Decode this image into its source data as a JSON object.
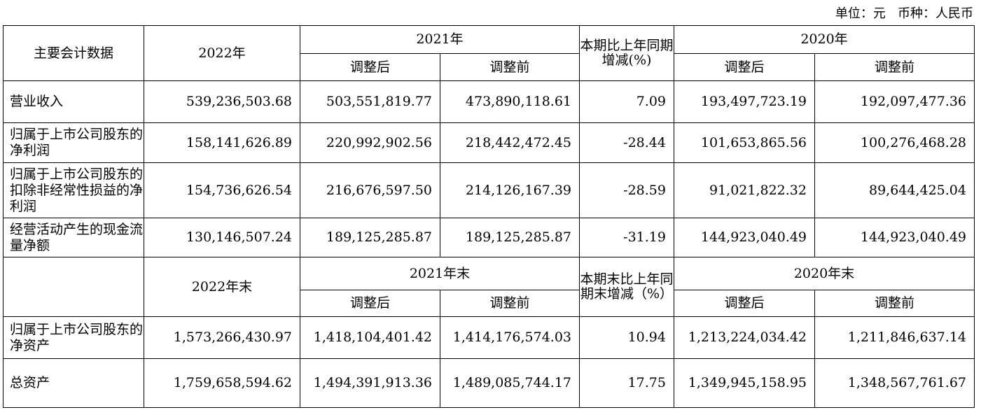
{
  "unit_line": "单位：元   币种：人民币",
  "header_top": {
    "metric": "主要会计数据",
    "y_cur": "2022年",
    "y_prev": "2021年",
    "change": "本期比上年同期增减(%)",
    "y_prev2": "2020年",
    "adj_after": "调整后",
    "adj_before": "调整前"
  },
  "rows_top": [
    {
      "label": "营业收入",
      "v2022": "539,236,503.68",
      "v2021_after": "503,551,819.77",
      "v2021_before": "473,890,118.61",
      "change": "7.09",
      "v2020_after": "193,497,723.19",
      "v2020_before": "192,097,477.36"
    },
    {
      "label": "归属于上市公司股东的净利润",
      "v2022": "158,141,626.89",
      "v2021_after": "220,992,902.56",
      "v2021_before": "218,442,472.45",
      "change": "-28.44",
      "v2020_after": "101,653,865.56",
      "v2020_before": "100,276,468.28"
    },
    {
      "label": "归属于上市公司股东的扣除非经常性损益的净利润",
      "v2022": "154,736,626.54",
      "v2021_after": "216,676,597.50",
      "v2021_before": "214,126,167.39",
      "change": "-28.59",
      "v2020_after": "91,021,822.32",
      "v2020_before": "89,644,425.04"
    },
    {
      "label": "经营活动产生的现金流量净额",
      "v2022": "130,146,507.24",
      "v2021_after": "189,125,285.87",
      "v2021_before": "189,125,285.87",
      "change": "-31.19",
      "v2020_after": "144,923,040.49",
      "v2020_before": "144,923,040.49"
    }
  ],
  "header_bottom": {
    "metric": "",
    "y_cur": "2022年末",
    "y_prev": "2021年末",
    "change": "本期末比上年同期末增减（%）",
    "y_prev2": "2020年末",
    "adj_after": "调整后",
    "adj_before": "调整前"
  },
  "rows_bottom": [
    {
      "label": "归属于上市公司股东的净资产",
      "v2022": "1,573,266,430.97",
      "v2021_after": "1,418,104,401.42",
      "v2021_before": "1,414,176,574.03",
      "change": "10.94",
      "v2020_after": "1,213,224,034.42",
      "v2020_before": "1,211,846,637.14"
    },
    {
      "label": "总资产",
      "v2022": "1,759,658,594.62",
      "v2021_after": "1,494,391,913.36",
      "v2021_before": "1,489,085,744.17",
      "change": "17.75",
      "v2020_after": "1,349,945,158.95",
      "v2020_before": "1,348,567,761.67"
    }
  ]
}
